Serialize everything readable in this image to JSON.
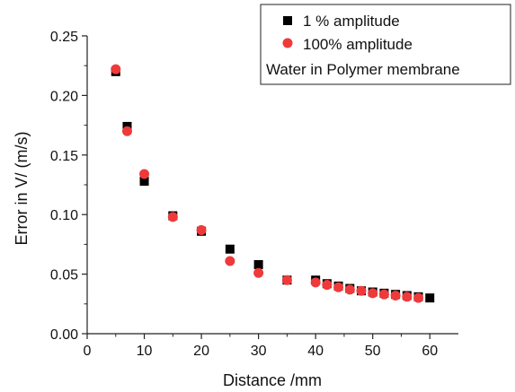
{
  "chart_data": {
    "type": "scatter",
    "xlabel": "Distance /mm",
    "ylabel": "Error in V/ (m/s)",
    "xlim": [
      0,
      65
    ],
    "ylim": [
      0,
      0.25
    ],
    "x_ticks": [
      0,
      10,
      20,
      30,
      40,
      50,
      60
    ],
    "y_ticks": [
      0.0,
      0.05,
      0.1,
      0.15,
      0.2,
      0.25
    ],
    "x_tick_labels": [
      "0",
      "10",
      "20",
      "30",
      "40",
      "50",
      "60"
    ],
    "y_tick_labels": [
      "0.00",
      "0.05",
      "0.10",
      "0.15",
      "0.20",
      "0.25"
    ],
    "grid": false,
    "legend_position": "top-right",
    "annotation": "Water in Polymer membrane",
    "series": [
      {
        "name": "1 % amplitude",
        "marker": "square",
        "color": "#000000",
        "x": [
          5,
          7,
          10,
          15,
          20,
          25,
          30,
          35,
          40,
          42,
          44,
          46,
          48,
          50,
          52,
          54,
          56,
          58,
          60
        ],
        "y": [
          0.22,
          0.174,
          0.128,
          0.099,
          0.086,
          0.071,
          0.058,
          0.045,
          0.045,
          0.042,
          0.04,
          0.038,
          0.036,
          0.035,
          0.034,
          0.033,
          0.032,
          0.031,
          0.03
        ]
      },
      {
        "name": "100% amplitude",
        "marker": "circle",
        "color": "#ee3a3a",
        "x": [
          5,
          7,
          10,
          15,
          20,
          25,
          30,
          35,
          40,
          42,
          44,
          46,
          48,
          50,
          52,
          54,
          56,
          58
        ],
        "y": [
          0.222,
          0.17,
          0.134,
          0.098,
          0.087,
          0.061,
          0.051,
          0.045,
          0.043,
          0.041,
          0.039,
          0.037,
          0.036,
          0.034,
          0.033,
          0.032,
          0.031,
          0.03
        ]
      }
    ]
  }
}
